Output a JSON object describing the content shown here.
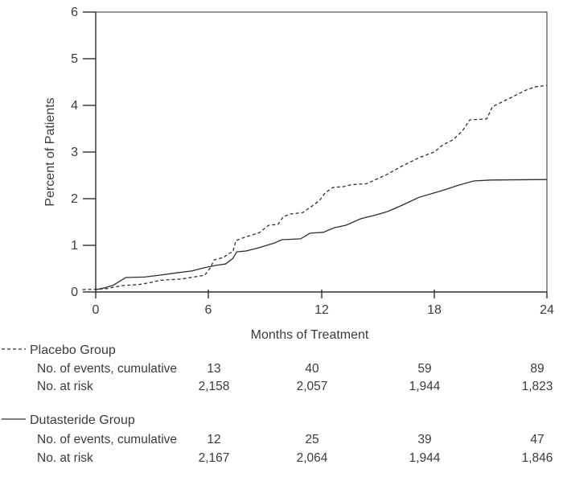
{
  "chart_data": {
    "type": "line",
    "title": "",
    "xlabel": "Months of Treatment",
    "ylabel": "Percent of Patients",
    "xlim": [
      0,
      24
    ],
    "ylim": [
      0,
      6
    ],
    "xticks": [
      "0",
      "6",
      "12",
      "18",
      "24"
    ],
    "yticks": [
      "0",
      "1",
      "2",
      "3",
      "4",
      "5",
      "6"
    ],
    "grid": false,
    "legend_position": "below-left",
    "series": [
      {
        "name": "Placebo Group",
        "style": "dashed",
        "points": [
          [
            -0.7,
            0.05
          ],
          [
            0,
            0.06
          ],
          [
            0.6,
            0.07
          ],
          [
            0.9,
            0.1
          ],
          [
            1.5,
            0.14
          ],
          [
            2.3,
            0.16
          ],
          [
            2.9,
            0.2
          ],
          [
            3.4,
            0.25
          ],
          [
            4.6,
            0.28
          ],
          [
            5.2,
            0.32
          ],
          [
            5.8,
            0.36
          ],
          [
            6.1,
            0.52
          ],
          [
            6.3,
            0.69
          ],
          [
            6.8,
            0.74
          ],
          [
            7.1,
            0.83
          ],
          [
            7.3,
            0.86
          ],
          [
            7.45,
            1.1
          ],
          [
            7.9,
            1.17
          ],
          [
            8.7,
            1.27
          ],
          [
            9.2,
            1.43
          ],
          [
            9.7,
            1.45
          ],
          [
            9.95,
            1.6
          ],
          [
            10.3,
            1.67
          ],
          [
            11.0,
            1.7
          ],
          [
            11.5,
            1.84
          ],
          [
            11.9,
            1.96
          ],
          [
            12.2,
            2.12
          ],
          [
            12.6,
            2.24
          ],
          [
            13.2,
            2.26
          ],
          [
            13.6,
            2.3
          ],
          [
            14.4,
            2.32
          ],
          [
            15.0,
            2.43
          ],
          [
            15.5,
            2.52
          ],
          [
            16.3,
            2.7
          ],
          [
            17.2,
            2.88
          ],
          [
            18.0,
            3.0
          ],
          [
            18.5,
            3.16
          ],
          [
            19.0,
            3.26
          ],
          [
            19.5,
            3.45
          ],
          [
            19.9,
            3.69
          ],
          [
            20.8,
            3.71
          ],
          [
            21.1,
            3.97
          ],
          [
            21.9,
            4.13
          ],
          [
            22.9,
            4.33
          ],
          [
            23.4,
            4.4
          ],
          [
            24,
            4.43
          ]
        ]
      },
      {
        "name": "Dutasteride Group",
        "style": "solid",
        "points": [
          [
            0,
            0.05
          ],
          [
            0.5,
            0.09
          ],
          [
            0.9,
            0.14
          ],
          [
            1.2,
            0.21
          ],
          [
            1.6,
            0.31
          ],
          [
            2.6,
            0.32
          ],
          [
            3.4,
            0.36
          ],
          [
            4.3,
            0.41
          ],
          [
            5.1,
            0.45
          ],
          [
            5.8,
            0.52
          ],
          [
            6.4,
            0.57
          ],
          [
            6.9,
            0.6
          ],
          [
            7.3,
            0.72
          ],
          [
            7.5,
            0.86
          ],
          [
            8.0,
            0.88
          ],
          [
            8.7,
            0.95
          ],
          [
            9.5,
            1.05
          ],
          [
            9.9,
            1.12
          ],
          [
            10.9,
            1.14
          ],
          [
            11.4,
            1.26
          ],
          [
            12.1,
            1.28
          ],
          [
            12.7,
            1.38
          ],
          [
            13.3,
            1.43
          ],
          [
            14.1,
            1.57
          ],
          [
            14.8,
            1.64
          ],
          [
            15.5,
            1.72
          ],
          [
            16.3,
            1.86
          ],
          [
            17.2,
            2.03
          ],
          [
            18.4,
            2.17
          ],
          [
            19.3,
            2.29
          ],
          [
            20.1,
            2.38
          ],
          [
            21.0,
            2.4
          ],
          [
            24,
            2.41
          ]
        ]
      }
    ],
    "annotation_table": {
      "timepoints": [
        6,
        12,
        18,
        24
      ],
      "row_labels": [
        "No. of events, cumulative",
        "No. at risk"
      ],
      "groups": [
        {
          "name": "Placebo Group",
          "events_cumulative": [
            "13",
            "40",
            "59",
            "89"
          ],
          "at_risk": [
            "2,158",
            "2,057",
            "1,944",
            "1,823"
          ]
        },
        {
          "name": "Dutasteride Group",
          "events_cumulative": [
            "12",
            "25",
            "39",
            "47"
          ],
          "at_risk": [
            "2,167",
            "2,064",
            "1,944",
            "1,846"
          ]
        }
      ]
    }
  },
  "colors": {
    "line": "#2e2e2e",
    "axis": "#2e2e2e",
    "text": "#3b3b3b",
    "background": "#ffffff"
  }
}
